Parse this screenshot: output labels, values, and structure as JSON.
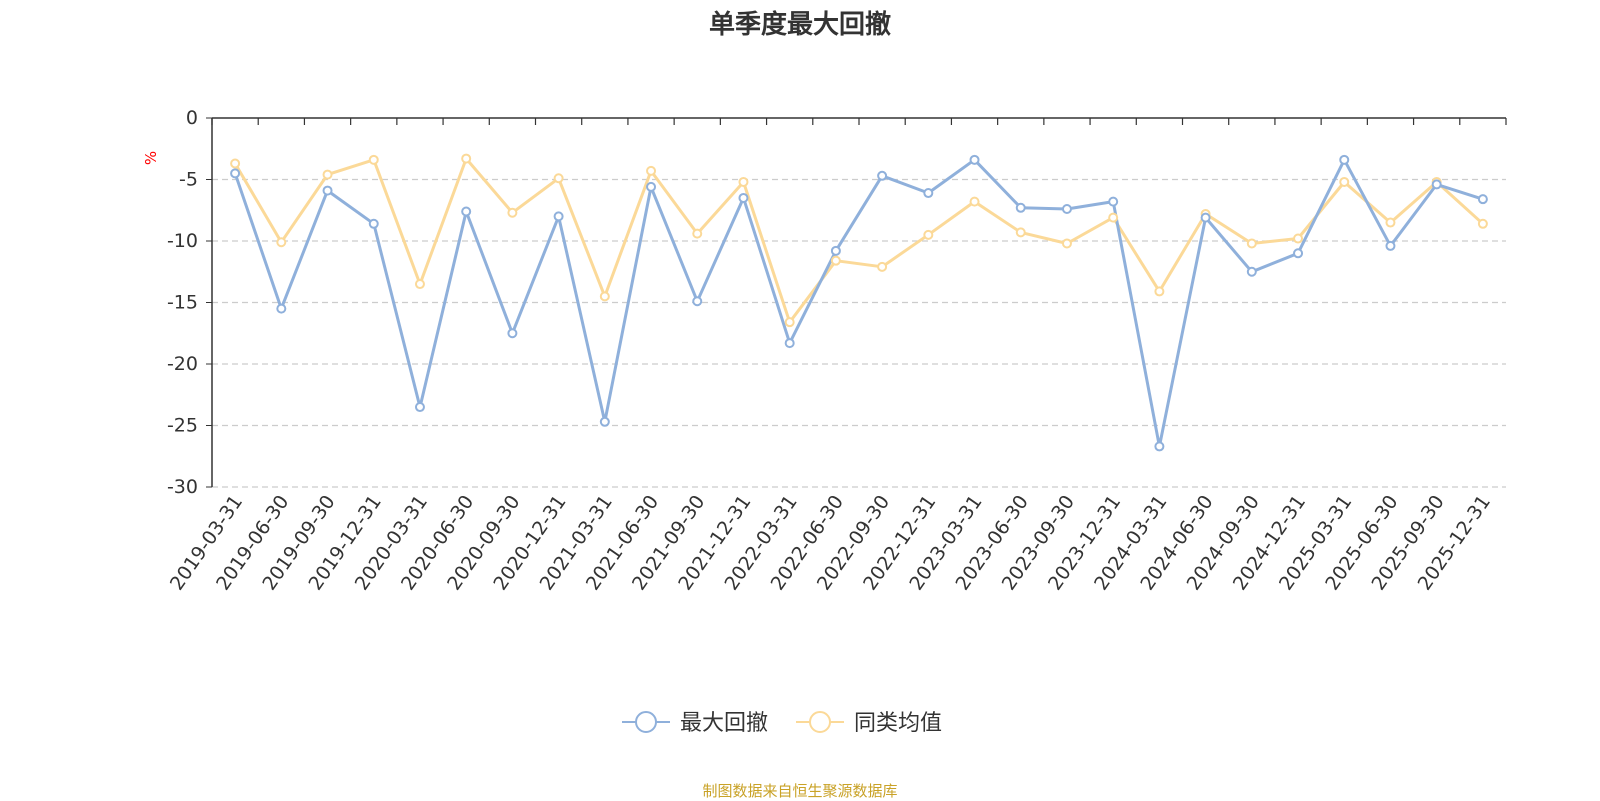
{
  "chart_data": {
    "type": "line",
    "title": "单季度最大回撤",
    "ylabel": "%",
    "ylim": [
      -30,
      0
    ],
    "yticks": [
      0,
      -5,
      -10,
      -15,
      -20,
      -25,
      -30
    ],
    "ytick_labels": [
      "0",
      "-5",
      "-10",
      "-15",
      "-20",
      "-25",
      "-30"
    ],
    "grid": true,
    "legend_position": "bottom",
    "categories": [
      "2019-03-31",
      "2019-06-30",
      "2019-09-30",
      "2019-12-31",
      "2020-03-31",
      "2020-06-30",
      "2020-09-30",
      "2020-12-31",
      "2021-03-31",
      "2021-06-30",
      "2021-09-30",
      "2021-12-31",
      "2022-03-31",
      "2022-06-30",
      "2022-09-30",
      "2022-12-31",
      "2023-03-31",
      "2023-06-30",
      "2023-09-30",
      "2023-12-31",
      "2024-03-31",
      "2024-06-30",
      "2024-09-30",
      "2024-12-31",
      "2025-03-31",
      "2025-06-30",
      "2025-09-30",
      "2025-12-31"
    ],
    "series": [
      {
        "name": "最大回撤",
        "color": "#8fb0db",
        "values": [
          -4.5,
          -15.5,
          -5.9,
          -8.6,
          -23.5,
          -7.6,
          -17.5,
          -8.0,
          -24.7,
          -5.6,
          -14.9,
          -6.5,
          -18.3,
          -10.8,
          -4.7,
          -6.1,
          -3.4,
          -7.3,
          -7.4,
          -6.8,
          -26.7,
          -8.1,
          -12.5,
          -11.0,
          -3.4,
          -10.4,
          -5.4,
          -6.6
        ]
      },
      {
        "name": "同类均值",
        "color": "#fbd998",
        "values": [
          -3.7,
          -10.1,
          -4.6,
          -3.4,
          -13.5,
          -3.3,
          -7.7,
          -4.9,
          -14.5,
          -4.3,
          -9.4,
          -5.2,
          -16.6,
          -11.6,
          -12.1,
          -9.5,
          -6.8,
          -9.3,
          -10.2,
          -8.1,
          -14.1,
          -7.8,
          -10.2,
          -9.8,
          -5.2,
          -8.5,
          -5.2,
          -8.6
        ]
      }
    ]
  },
  "source_note": "制图数据来自恒生聚源数据库",
  "colors": {
    "title": "#333333",
    "axis": "#333333",
    "grid": "#cccccc",
    "unit_label": "#ff0000",
    "source_note": "#c9a227"
  }
}
